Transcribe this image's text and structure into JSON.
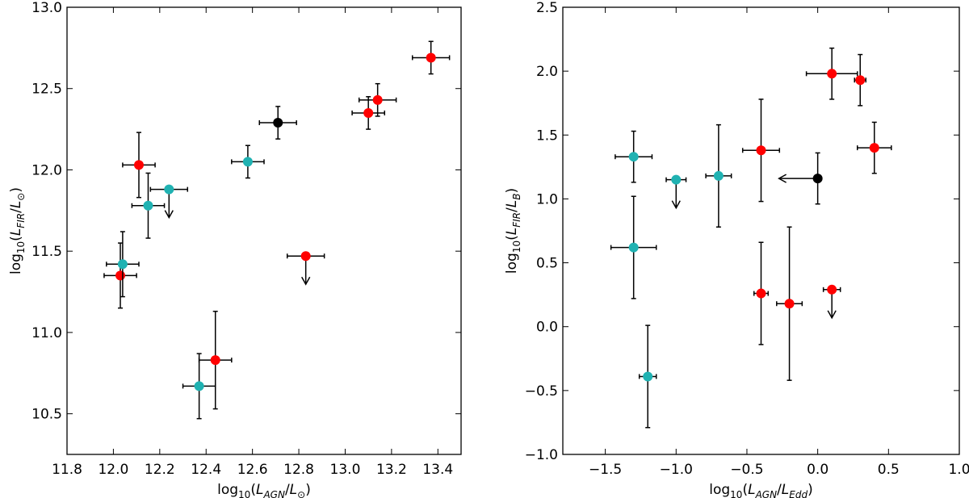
{
  "colors": {
    "red": "#ff0000",
    "cyan": "#20b2b2",
    "black": "#000000",
    "axis": "#000000"
  },
  "chart_data": [
    {
      "type": "scatter",
      "title": "",
      "xlabel": "log10(L_AGN/L_sun)",
      "ylabel": "log10(L_FIR/L_sun)",
      "xlabel_parts": {
        "base": "log",
        "sub": "10",
        "open": "(",
        "num": "L",
        "num_sub": "AGN",
        "slash": "/",
        "den": "L",
        "den_sub": "⊙",
        "close": ")"
      },
      "ylabel_parts": {
        "base": "log",
        "sub": "10",
        "open": "(",
        "num": "L",
        "num_sub": "FIR",
        "slash": "/",
        "den": "L",
        "den_sub": "⊙",
        "close": ")"
      },
      "xlim": [
        11.8,
        13.5
      ],
      "ylim": [
        10.25,
        13.0
      ],
      "xticks": [
        11.8,
        12.0,
        12.2,
        12.4,
        12.6,
        12.8,
        13.0,
        13.2,
        13.4
      ],
      "xtick_labels": [
        "11.8",
        "12.0",
        "12.2",
        "12.4",
        "12.6",
        "12.8",
        "13.0",
        "13.2",
        "13.4"
      ],
      "yticks": [
        10.5,
        11.0,
        11.5,
        12.0,
        12.5,
        13.0
      ],
      "ytick_labels": [
        "10.5",
        "11.0",
        "11.5",
        "12.0",
        "12.5",
        "13.0"
      ],
      "grid": false,
      "points": [
        {
          "x": 12.03,
          "y": 11.35,
          "xerr": 0.07,
          "yerr": 0.2,
          "color": "red",
          "upper_limit": false
        },
        {
          "x": 12.04,
          "y": 11.42,
          "xerr": 0.07,
          "yerr": 0.2,
          "color": "cyan",
          "upper_limit": false
        },
        {
          "x": 12.11,
          "y": 12.03,
          "xerr": 0.07,
          "yerr": 0.2,
          "color": "red",
          "upper_limit": false
        },
        {
          "x": 12.15,
          "y": 11.78,
          "xerr": 0.07,
          "yerr": 0.2,
          "color": "cyan",
          "upper_limit": false
        },
        {
          "x": 12.24,
          "y": 11.88,
          "xerr": 0.08,
          "yerr": 0.0,
          "color": "cyan",
          "upper_limit": true
        },
        {
          "x": 12.37,
          "y": 10.67,
          "xerr": 0.07,
          "yerr": 0.2,
          "color": "cyan",
          "upper_limit": false
        },
        {
          "x": 12.44,
          "y": 10.83,
          "xerr": 0.07,
          "yerr": 0.3,
          "color": "red",
          "upper_limit": false
        },
        {
          "x": 12.58,
          "y": 12.05,
          "xerr": 0.07,
          "yerr": 0.1,
          "color": "cyan",
          "upper_limit": false
        },
        {
          "x": 12.71,
          "y": 12.29,
          "xerr": 0.08,
          "yerr": 0.1,
          "color": "black",
          "upper_limit": false
        },
        {
          "x": 12.83,
          "y": 11.47,
          "xerr": 0.08,
          "yerr": 0.0,
          "color": "red",
          "upper_limit": true
        },
        {
          "x": 13.1,
          "y": 12.35,
          "xerr": 0.07,
          "yerr": 0.1,
          "color": "red",
          "upper_limit": false
        },
        {
          "x": 13.14,
          "y": 12.43,
          "xerr": 0.08,
          "yerr": 0.1,
          "color": "red",
          "upper_limit": false
        },
        {
          "x": 13.37,
          "y": 12.69,
          "xerr": 0.08,
          "yerr": 0.1,
          "color": "red",
          "upper_limit": false
        }
      ]
    },
    {
      "type": "scatter",
      "title": "",
      "xlabel": "log10(L_AGN/L_Edd)",
      "ylabel": "log10(L_FIR/L_B)",
      "xlabel_parts": {
        "base": "log",
        "sub": "10",
        "open": "(",
        "num": "L",
        "num_sub": "AGN",
        "slash": "/",
        "den": "L",
        "den_sub": "Edd",
        "close": ")"
      },
      "ylabel_parts": {
        "base": "log",
        "sub": "10",
        "open": "(",
        "num": "L",
        "num_sub": "FIR",
        "slash": "/",
        "den": "L",
        "den_sub": "B",
        "close": ")"
      },
      "xlim": [
        -1.8,
        1.0
      ],
      "ylim": [
        -1.0,
        2.5
      ],
      "xticks": [
        -1.5,
        -1.0,
        -0.5,
        0.0,
        0.5,
        1.0
      ],
      "xtick_labels": [
        "−1.5",
        "−1.0",
        "−0.5",
        "0.0",
        "0.5",
        "1.0"
      ],
      "yticks": [
        -1.0,
        -0.5,
        0.0,
        0.5,
        1.0,
        1.5,
        2.0,
        2.5
      ],
      "ytick_labels": [
        "−1.0",
        "−0.5",
        "0.0",
        "0.5",
        "1.0",
        "1.5",
        "2.0",
        "2.5"
      ],
      "grid": false,
      "points": [
        {
          "x": -1.3,
          "y": 1.33,
          "xerr": 0.13,
          "yerr": 0.2,
          "color": "cyan",
          "upper_limit": false
        },
        {
          "x": -1.3,
          "y": 0.62,
          "xerr": 0.16,
          "yerr": 0.4,
          "color": "cyan",
          "upper_limit": false
        },
        {
          "x": -1.2,
          "y": -0.39,
          "xerr": 0.06,
          "yerr": 0.4,
          "color": "cyan",
          "upper_limit": false
        },
        {
          "x": -1.0,
          "y": 1.15,
          "xerr": 0.07,
          "yerr": 0.0,
          "color": "cyan",
          "upper_limit": true
        },
        {
          "x": -0.7,
          "y": 1.18,
          "xerr": 0.09,
          "yerr": 0.4,
          "color": "cyan",
          "upper_limit": false
        },
        {
          "x": -0.4,
          "y": 1.38,
          "xerr": 0.13,
          "yerr": 0.4,
          "color": "red",
          "upper_limit": false
        },
        {
          "x": -0.4,
          "y": 0.26,
          "xerr": 0.05,
          "yerr": 0.4,
          "color": "red",
          "upper_limit": false
        },
        {
          "x": -0.2,
          "y": 0.18,
          "xerr": 0.09,
          "yerr": 0.6,
          "color": "red",
          "upper_limit": false
        },
        {
          "x": 0.0,
          "y": 1.16,
          "xerr": 0.0,
          "yerr": 0.2,
          "color": "black",
          "upper_limit": false,
          "lower_limit_x": true
        },
        {
          "x": 0.1,
          "y": 0.29,
          "xerr": 0.06,
          "yerr": 0.0,
          "color": "red",
          "upper_limit": true
        },
        {
          "x": 0.1,
          "y": 1.98,
          "xerr": 0.18,
          "yerr": 0.2,
          "color": "red",
          "upper_limit": false
        },
        {
          "x": 0.3,
          "y": 1.93,
          "xerr": 0.04,
          "yerr": 0.2,
          "color": "red",
          "upper_limit": false
        },
        {
          "x": 0.4,
          "y": 1.4,
          "xerr": 0.12,
          "yerr": 0.2,
          "color": "red",
          "upper_limit": false
        }
      ]
    }
  ]
}
